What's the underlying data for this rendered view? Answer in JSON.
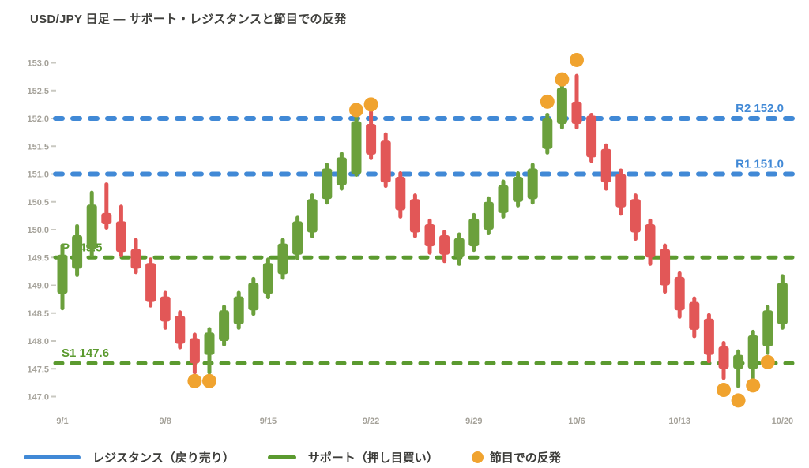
{
  "title": "USD/JPY 日足 — サポート・レジスタンスと節目での反発",
  "colors": {
    "candle_up": "#6ba03c",
    "candle_down": "#e25757",
    "resistance": "#4189d6",
    "support": "#5b9a2f",
    "bounce_dot": "#f0a32f",
    "axis_text": "#a5a29a",
    "title_text": "#40403d"
  },
  "legend": {
    "items": [
      {
        "swatch": "blue-line",
        "label": "レジスタンス（戻り売り）"
      },
      {
        "swatch": "green-line",
        "label": "サポート（押し目買い）"
      },
      {
        "swatch": "orange-dot",
        "label": "節目での反発"
      }
    ]
  },
  "chart_data": {
    "type": "candlestick",
    "title": "USD/JPY 日足 — サポート・レジスタンスと節目での反発",
    "y_axis": {
      "min": 147.0,
      "max": 153.0,
      "step": 0.5,
      "tick_labels": [
        "153.0",
        "152.5",
        "152.0",
        "151.5",
        "151.0",
        "150.5",
        "150.0",
        "149.5",
        "149.0",
        "148.5",
        "148.0",
        "147.5",
        "147.0"
      ]
    },
    "x_axis": {
      "tick_labels": [
        "9/1",
        "9/8",
        "9/15",
        "9/22",
        "9/29",
        "10/6",
        "10/13",
        "10/20"
      ],
      "tick_indices": [
        0,
        7,
        14,
        21,
        28,
        35,
        42,
        49
      ]
    },
    "levels": [
      {
        "name": "R2",
        "value": 152.0,
        "label": "R2 152.0",
        "role": "resistance",
        "label_side": "right"
      },
      {
        "name": "R1",
        "value": 151.0,
        "label": "R1 151.0",
        "role": "resistance",
        "label_side": "right"
      },
      {
        "name": "P",
        "value": 149.5,
        "label": "P 149.5",
        "role": "support",
        "label_side": "left"
      },
      {
        "name": "S1",
        "value": 147.6,
        "label": "S1 147.6",
        "role": "support",
        "label_side": "left"
      }
    ],
    "candles_format": [
      "open",
      "high",
      "low",
      "close"
    ],
    "candles": [
      [
        148.85,
        149.75,
        148.55,
        149.55
      ],
      [
        149.3,
        150.1,
        149.15,
        149.9
      ],
      [
        149.65,
        150.7,
        149.5,
        150.45
      ],
      [
        150.3,
        150.85,
        150.0,
        150.1
      ],
      [
        150.15,
        150.45,
        149.5,
        149.6
      ],
      [
        149.65,
        149.85,
        149.2,
        149.3
      ],
      [
        149.4,
        149.5,
        148.6,
        148.7
      ],
      [
        148.8,
        148.9,
        148.2,
        148.35
      ],
      [
        148.45,
        148.55,
        147.85,
        147.95
      ],
      [
        148.05,
        148.15,
        147.4,
        147.6
      ],
      [
        147.75,
        148.25,
        147.4,
        148.15
      ],
      [
        148.0,
        148.65,
        147.9,
        148.55
      ],
      [
        148.3,
        148.9,
        148.2,
        148.8
      ],
      [
        148.55,
        149.15,
        148.45,
        149.05
      ],
      [
        148.85,
        149.5,
        148.75,
        149.4
      ],
      [
        149.2,
        149.85,
        149.1,
        149.75
      ],
      [
        149.55,
        150.25,
        149.45,
        150.15
      ],
      [
        149.95,
        150.65,
        149.85,
        150.55
      ],
      [
        150.55,
        151.2,
        150.45,
        151.1
      ],
      [
        150.8,
        151.4,
        150.7,
        151.3
      ],
      [
        151.0,
        152.1,
        150.95,
        151.95
      ],
      [
        151.9,
        152.15,
        151.25,
        151.35
      ],
      [
        151.6,
        151.75,
        150.75,
        150.85
      ],
      [
        150.95,
        151.05,
        150.2,
        150.35
      ],
      [
        150.55,
        150.65,
        149.85,
        149.95
      ],
      [
        150.1,
        150.2,
        149.55,
        149.7
      ],
      [
        149.9,
        150.0,
        149.4,
        149.55
      ],
      [
        149.5,
        149.95,
        149.35,
        149.85
      ],
      [
        149.7,
        150.3,
        149.6,
        150.2
      ],
      [
        150.0,
        150.6,
        149.9,
        150.5
      ],
      [
        150.3,
        150.9,
        150.2,
        150.8
      ],
      [
        150.5,
        151.05,
        150.4,
        150.95
      ],
      [
        150.55,
        151.2,
        150.45,
        151.1
      ],
      [
        151.45,
        152.1,
        151.35,
        152.0
      ],
      [
        151.9,
        152.65,
        151.8,
        152.55
      ],
      [
        152.3,
        152.8,
        151.8,
        151.9
      ],
      [
        152.05,
        152.1,
        151.2,
        151.3
      ],
      [
        151.45,
        151.55,
        150.7,
        150.85
      ],
      [
        151.0,
        151.1,
        150.25,
        150.4
      ],
      [
        150.55,
        150.65,
        149.8,
        149.95
      ],
      [
        150.1,
        150.2,
        149.35,
        149.5
      ],
      [
        149.65,
        149.75,
        148.85,
        149.0
      ],
      [
        149.15,
        149.25,
        148.4,
        148.55
      ],
      [
        148.7,
        148.8,
        148.05,
        148.2
      ],
      [
        148.4,
        148.5,
        147.6,
        147.75
      ],
      [
        147.9,
        148.0,
        147.3,
        147.5
      ],
      [
        147.5,
        147.85,
        147.15,
        147.75
      ],
      [
        147.5,
        148.2,
        147.2,
        148.1
      ],
      [
        147.9,
        148.65,
        147.75,
        148.55
      ],
      [
        148.3,
        149.2,
        148.2,
        149.05
      ]
    ],
    "bounce_markers": [
      {
        "index": 9,
        "price": 147.28,
        "side": "below"
      },
      {
        "index": 10,
        "price": 147.28,
        "side": "below"
      },
      {
        "index": 20,
        "price": 152.15,
        "side": "above"
      },
      {
        "index": 21,
        "price": 152.25,
        "side": "above"
      },
      {
        "index": 33,
        "price": 152.3,
        "side": "above"
      },
      {
        "index": 34,
        "price": 152.7,
        "side": "above"
      },
      {
        "index": 35,
        "price": 153.05,
        "side": "above"
      },
      {
        "index": 45,
        "price": 147.12,
        "side": "below"
      },
      {
        "index": 46,
        "price": 146.93,
        "side": "below"
      },
      {
        "index": 47,
        "price": 147.2,
        "side": "below"
      },
      {
        "index": 48,
        "price": 147.62,
        "side": "below"
      }
    ],
    "legend_position": "bottom",
    "grid": false
  }
}
